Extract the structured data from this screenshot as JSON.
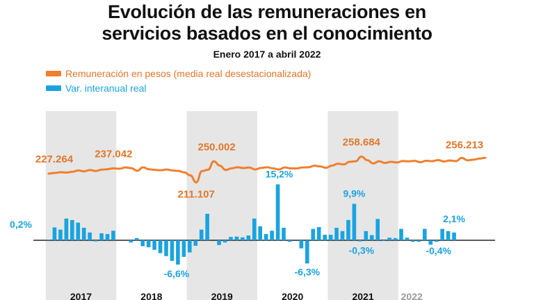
{
  "header": {
    "title_line1": "Evolución de las remuneraciones en",
    "title_line2": "servicios basados en el conocimiento",
    "subtitle": "Enero 2017 a abril 2022"
  },
  "legend": {
    "line_label": "Remuneración en pesos (media real desestacionalizada)",
    "bar_label": "Var. interanual real"
  },
  "colors": {
    "line": "#f07f2c",
    "bars": "#1aa3e0",
    "band": "#e6e6e6",
    "text_line": "#e2762a",
    "text_bar": "#1aa3e0"
  },
  "chart_data": [
    {
      "type": "line",
      "series": [
        {
          "name": "Remuneración en pesos (media real desestacionalizada)",
          "values": [
            227264,
            228500,
            229800,
            229200,
            230600,
            233000,
            231500,
            233800,
            232200,
            234600,
            235500,
            237042,
            236200,
            238600,
            237400,
            232500,
            238800,
            235200,
            234200,
            233500,
            234800,
            233100,
            232200,
            229500,
            224000,
            211107,
            232000,
            234500,
            250002,
            242000,
            234000,
            237000,
            239000,
            237500,
            238500,
            235000,
            237800,
            239000,
            237000,
            234800,
            238600,
            237000,
            236800,
            238700,
            239000,
            241800,
            240500,
            238000,
            242000,
            245500,
            244200,
            249000,
            250000,
            258684,
            252000,
            246000,
            250000,
            247000,
            249000,
            247800,
            250500,
            249800,
            250800,
            248300,
            251000,
            250200,
            252200,
            249800,
            251500,
            250300,
            256213,
            251800,
            253000,
            255000,
            256500
          ],
          "labels": [
            {
              "index": 0,
              "text": "227.264"
            },
            {
              "index": 11,
              "text": "237.042"
            },
            {
              "index": 25,
              "text": "211.107"
            },
            {
              "index": 28,
              "text": "250.002"
            },
            {
              "index": 53,
              "text": "258.684"
            },
            {
              "index": 70,
              "text": "256.213"
            }
          ]
        }
      ]
    },
    {
      "type": "bar",
      "series": [
        {
          "name": "Var. interanual real",
          "values": [
            0.2,
            3.5,
            2.9,
            5.9,
            5.5,
            4.8,
            3.4,
            2.1,
            -0.3,
            1.9,
            1.7,
            2.6,
            0.0,
            0.0,
            -0.6,
            0.6,
            -1.6,
            -1.9,
            -2.6,
            -3.5,
            -4.3,
            -5.6,
            -6.6,
            -4.5,
            -3.3,
            -1.5,
            2.9,
            7.2,
            0.0,
            -1.3,
            -0.6,
            0.9,
            1.0,
            0.8,
            1.3,
            5.9,
            3.8,
            1.7,
            2.6,
            15.2,
            3.4,
            -0.4,
            0.0,
            -2.2,
            -6.3,
            3.1,
            3.6,
            1.5,
            1.5,
            3.4,
            2.5,
            5.5,
            9.9,
            -0.3,
            2.5,
            1.4,
            5.8,
            -0.2,
            0.7,
            0.6,
            3.1,
            0.7,
            -0.4,
            -0.4,
            3.1,
            -1.2,
            -0.4,
            3.1,
            2.5,
            2.1
          ],
          "labels": [
            {
              "index": 0,
              "text": "0,2%"
            },
            {
              "index": 22,
              "text": "-6,6%"
            },
            {
              "index": 39,
              "text": "15,2%"
            },
            {
              "index": 44,
              "text": "-6,3%"
            },
            {
              "index": 52,
              "text": "9,9%"
            },
            {
              "index": 53,
              "text": "-0,3%"
            },
            {
              "index": 66,
              "text": "-0,4%"
            },
            {
              "index": 69,
              "text": "2,1%"
            }
          ]
        }
      ]
    }
  ],
  "years": [
    "2017",
    "2018",
    "2019",
    "2020",
    "2021",
    "2022"
  ]
}
